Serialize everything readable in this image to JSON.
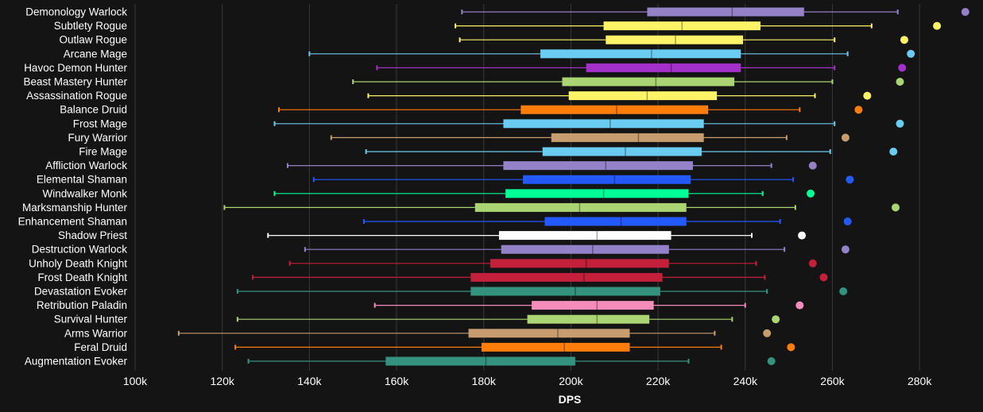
{
  "chart_data": {
    "type": "boxplot",
    "title": "",
    "xlabel": "DPS",
    "ylabel": "",
    "xlim": [
      100000,
      290000
    ],
    "xticks": [
      100000,
      120000,
      140000,
      160000,
      180000,
      200000,
      220000,
      240000,
      260000,
      280000
    ],
    "xtick_labels": [
      "100k",
      "120k",
      "140k",
      "160k",
      "180k",
      "200k",
      "220k",
      "240k",
      "260k",
      "280k"
    ],
    "grid": true,
    "series": [
      {
        "name": "Demonology Warlock",
        "color": "#9482c9",
        "min": 175000,
        "q1": 217500,
        "median": 237000,
        "q3": 253500,
        "max": 275000,
        "max_point": 290500
      },
      {
        "name": "Subtlety Rogue",
        "color": "#fff468",
        "min": 173500,
        "q1": 207500,
        "median": 225500,
        "q3": 243500,
        "max": 269000,
        "max_point": 284000
      },
      {
        "name": "Outlaw Rogue",
        "color": "#fff468",
        "min": 174500,
        "q1": 208000,
        "median": 224000,
        "q3": 239500,
        "max": 260500,
        "max_point": 276500
      },
      {
        "name": "Arcane Mage",
        "color": "#69ccf0",
        "min": 140000,
        "q1": 193000,
        "median": 218500,
        "q3": 239000,
        "max": 263500,
        "max_point": 278000
      },
      {
        "name": "Havoc Demon Hunter",
        "color": "#a330c9",
        "min": 155500,
        "q1": 203500,
        "median": 223000,
        "q3": 239000,
        "max": 260500,
        "max_point": 276000
      },
      {
        "name": "Beast Mastery Hunter",
        "color": "#abd473",
        "min": 150000,
        "q1": 198000,
        "median": 219500,
        "q3": 237500,
        "max": 260000,
        "max_point": 275500
      },
      {
        "name": "Assassination Rogue",
        "color": "#fff468",
        "min": 153500,
        "q1": 199500,
        "median": 217500,
        "q3": 233500,
        "max": 256000,
        "max_point": 268000
      },
      {
        "name": "Balance Druid",
        "color": "#ff7d0a",
        "min": 133000,
        "q1": 188500,
        "median": 210500,
        "q3": 231500,
        "max": 252500,
        "max_point": 266000
      },
      {
        "name": "Frost Mage",
        "color": "#69ccf0",
        "min": 132000,
        "q1": 184500,
        "median": 209000,
        "q3": 230500,
        "max": 260500,
        "max_point": 275500
      },
      {
        "name": "Fury Warrior",
        "color": "#c79c6e",
        "min": 145000,
        "q1": 195500,
        "median": 215500,
        "q3": 230500,
        "max": 249500,
        "max_point": 263000
      },
      {
        "name": "Fire Mage",
        "color": "#69ccf0",
        "min": 153000,
        "q1": 193500,
        "median": 212500,
        "q3": 230000,
        "max": 259500,
        "max_point": 274000
      },
      {
        "name": "Affliction Warlock",
        "color": "#9482c9",
        "min": 135000,
        "q1": 184500,
        "median": 208000,
        "q3": 228000,
        "max": 246000,
        "max_point": 255500
      },
      {
        "name": "Elemental Shaman",
        "color": "#2459ff",
        "min": 141000,
        "q1": 189000,
        "median": 210000,
        "q3": 227500,
        "max": 251000,
        "max_point": 264000
      },
      {
        "name": "Windwalker Monk",
        "color": "#00ff96",
        "min": 132000,
        "q1": 185000,
        "median": 207500,
        "q3": 227000,
        "max": 244000,
        "max_point": 255000
      },
      {
        "name": "Marksmanship Hunter",
        "color": "#abd473",
        "min": 120500,
        "q1": 178000,
        "median": 202000,
        "q3": 226500,
        "max": 251500,
        "max_point": 274500
      },
      {
        "name": "Enhancement Shaman",
        "color": "#2459ff",
        "min": 152500,
        "q1": 194000,
        "median": 211500,
        "q3": 226500,
        "max": 248000,
        "max_point": 263500
      },
      {
        "name": "Shadow Priest",
        "color": "#ffffff",
        "min": 130500,
        "q1": 183500,
        "median": 206000,
        "q3": 223000,
        "max": 241500,
        "max_point": 253000
      },
      {
        "name": "Destruction Warlock",
        "color": "#9482c9",
        "min": 139000,
        "q1": 184000,
        "median": 205000,
        "q3": 222500,
        "max": 249000,
        "max_point": 263000
      },
      {
        "name": "Unholy Death Knight",
        "color": "#c41f3b",
        "min": 135500,
        "q1": 181500,
        "median": 203500,
        "q3": 222500,
        "max": 242500,
        "max_point": 255500
      },
      {
        "name": "Frost Death Knight",
        "color": "#c41f3b",
        "min": 127000,
        "q1": 177000,
        "median": 203000,
        "q3": 221000,
        "max": 244500,
        "max_point": 258000
      },
      {
        "name": "Devastation Evoker",
        "color": "#33937f",
        "min": 123500,
        "q1": 177000,
        "median": 201000,
        "q3": 220500,
        "max": 245000,
        "max_point": 262500
      },
      {
        "name": "Retribution Paladin",
        "color": "#f58cba",
        "min": 155000,
        "q1": 191000,
        "median": 206000,
        "q3": 219000,
        "max": 240000,
        "max_point": 252500
      },
      {
        "name": "Survival Hunter",
        "color": "#abd473",
        "min": 123500,
        "q1": 190000,
        "median": 206000,
        "q3": 218000,
        "max": 237000,
        "max_point": 247000
      },
      {
        "name": "Arms Warrior",
        "color": "#c79c6e",
        "min": 110000,
        "q1": 176500,
        "median": 197000,
        "q3": 213500,
        "max": 233000,
        "max_point": 245000
      },
      {
        "name": "Feral Druid",
        "color": "#ff7d0a",
        "min": 123000,
        "q1": 179500,
        "median": 198500,
        "q3": 213500,
        "max": 234500,
        "max_point": 250500
      },
      {
        "name": "Augmentation Evoker",
        "color": "#33937f",
        "min": 126000,
        "q1": 157500,
        "median": 180500,
        "q3": 201000,
        "max": 227000,
        "max_point": 246000
      }
    ]
  },
  "colors": {
    "background": "#141414",
    "grid": "#3a3a3a",
    "text": "#ffffff"
  }
}
